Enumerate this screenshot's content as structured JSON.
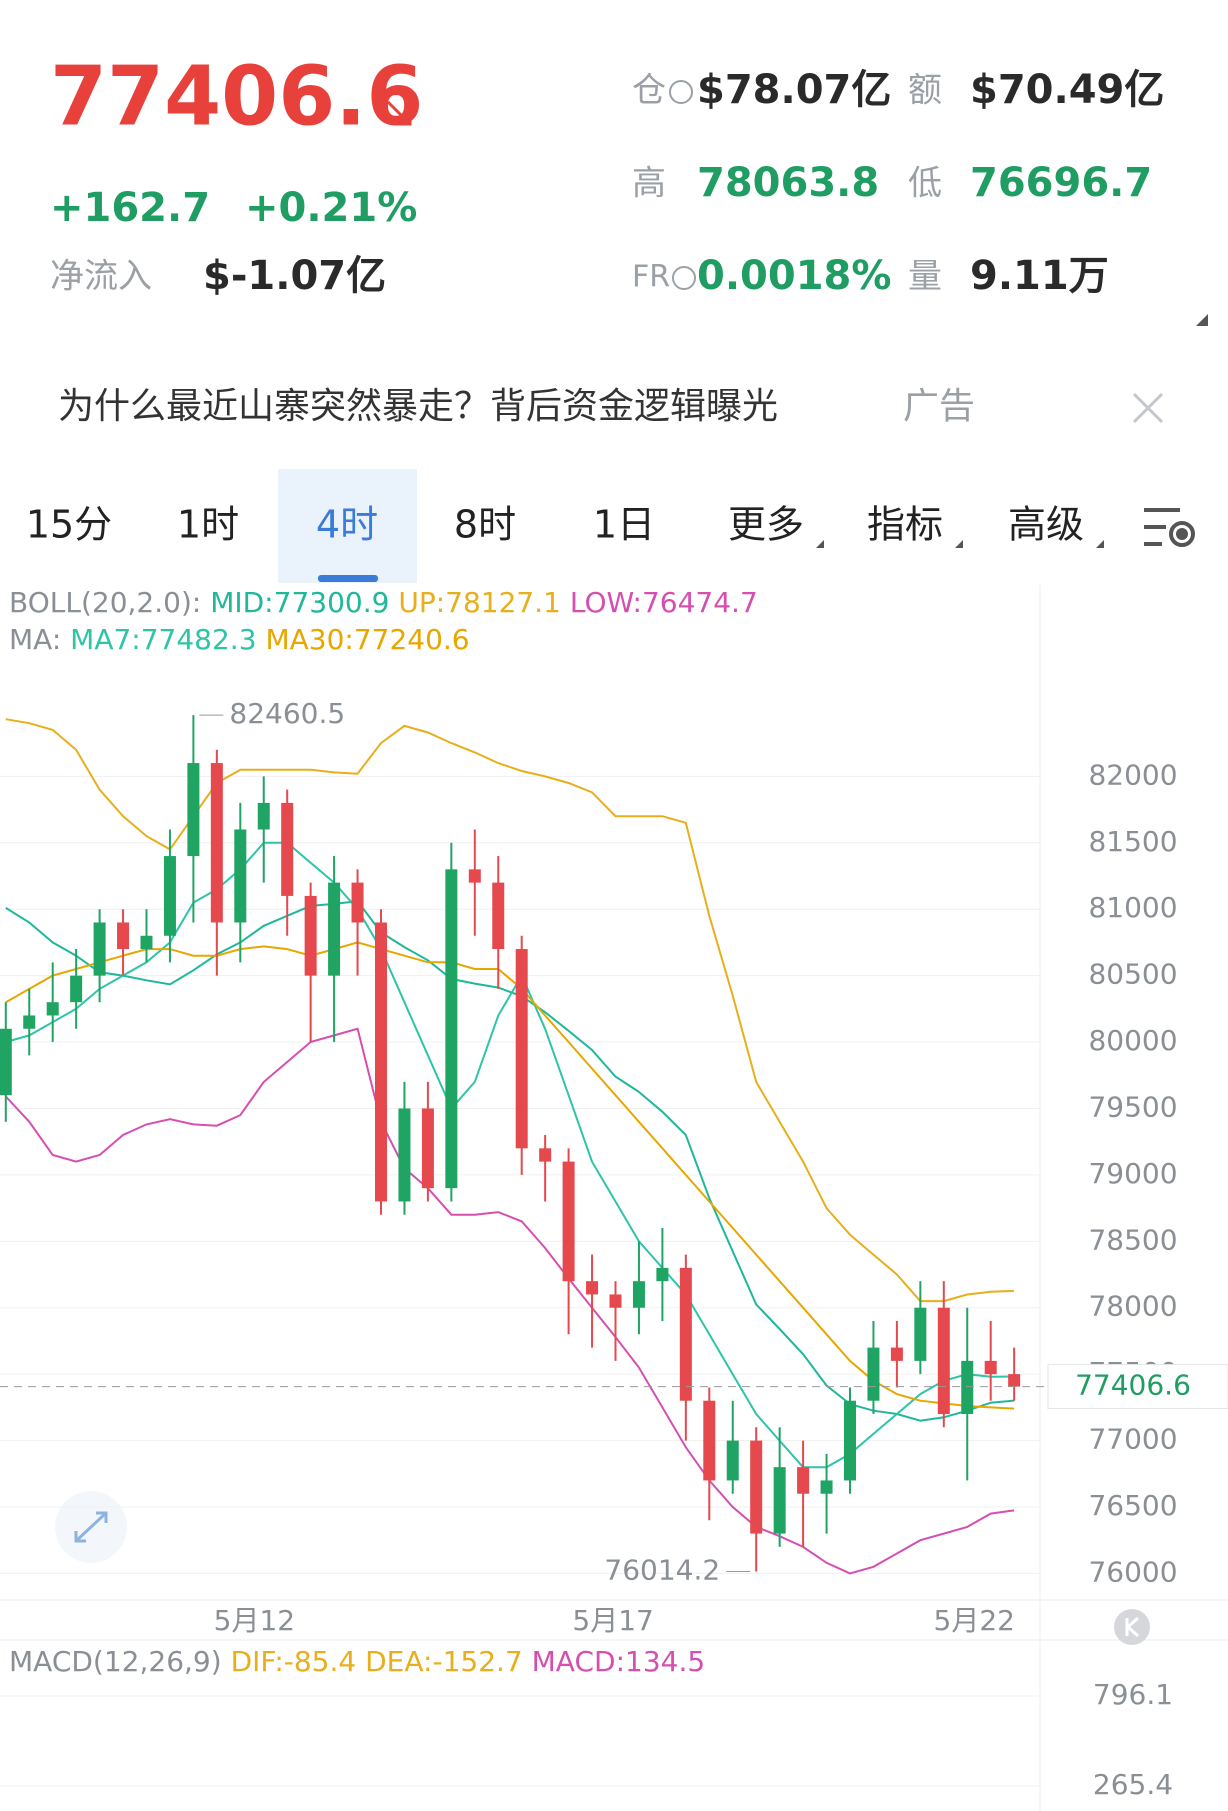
{
  "header": {
    "price": "77406.6",
    "change": "+162.7",
    "change_pct": "+0.21%",
    "net_inflow_label": "净流入",
    "net_inflow": "$-1.07亿",
    "open_interest_label": "仓",
    "open_interest": "$78.07亿",
    "turnover_label": "额",
    "turnover": "$70.49亿",
    "high_label": "高",
    "high": "78063.8",
    "low_label": "低",
    "low": "76696.7",
    "funding_label": "FR",
    "funding_rate": "0.0018%",
    "volume_label": "量",
    "volume": "9.11万"
  },
  "ad": {
    "text": "为什么最近山寨突然暴走？背后资金逻辑曝光",
    "tag": "广告"
  },
  "tabs": [
    "15分",
    "1时",
    "4时",
    "8时",
    "1日",
    "更多",
    "指标",
    "高级"
  ],
  "active_tab": 2,
  "chart_data": {
    "type": "candlestick",
    "legend_boll": "BOLL(20,2.0):",
    "legend_ma": "MA:",
    "open": [
      79600,
      80100,
      80200,
      80300,
      80500,
      80900,
      80700,
      80800,
      81400,
      82100,
      80900,
      81600,
      81800,
      81100,
      80500,
      81200,
      80900,
      78800,
      79500,
      78900,
      81300,
      81200,
      80700,
      79200,
      79100,
      78200,
      78100,
      78000,
      78200,
      78300,
      77300,
      76700,
      77000,
      76300,
      76800,
      76600,
      76700,
      77300,
      77700,
      77600,
      78000,
      77200,
      77600,
      77500
    ],
    "high": [
      80300,
      80400,
      80600,
      80700,
      81000,
      81000,
      81000,
      81600,
      82460.5,
      82200,
      81800,
      82000,
      81900,
      81200,
      81400,
      81300,
      81000,
      79700,
      79700,
      81500,
      81600,
      81400,
      80800,
      79300,
      79200,
      78400,
      78200,
      78500,
      78600,
      78400,
      77400,
      77300,
      77100,
      77100,
      77000,
      76900,
      77400,
      77900,
      77900,
      78200,
      78200,
      78000,
      77900,
      77700
    ],
    "low": [
      79400,
      79900,
      80000,
      80100,
      80300,
      80500,
      80600,
      80600,
      80900,
      80500,
      80600,
      81200,
      80800,
      80000,
      80000,
      80500,
      78700,
      78700,
      78800,
      78800,
      80800,
      80400,
      79000,
      78800,
      77800,
      77700,
      77600,
      77800,
      77900,
      77000,
      76400,
      76600,
      76014.2,
      76200,
      76200,
      76300,
      76600,
      77200,
      77400,
      77500,
      77100,
      76700,
      77300,
      77300
    ],
    "close": [
      80100,
      80200,
      80300,
      80500,
      80900,
      80700,
      80800,
      81400,
      82100,
      80900,
      81600,
      81800,
      81100,
      80500,
      81200,
      80900,
      78800,
      79500,
      78900,
      81300,
      81200,
      80700,
      79200,
      79100,
      78200,
      78100,
      78000,
      78200,
      78300,
      77300,
      76700,
      77000,
      76300,
      76800,
      76600,
      76700,
      77300,
      77700,
      77600,
      78000,
      77200,
      77600,
      77500,
      77406.6
    ],
    "up_color": "#20a464",
    "down_color": "#e5484d",
    "series": [
      {
        "name": "MID:",
        "color": "#1fb89a",
        "legend_row": 0,
        "values": [
          81010,
          80900,
          80750,
          80650,
          80525,
          80500,
          80465,
          80435,
          80540,
          80660,
          80750,
          80875,
          80950,
          81025,
          81040,
          81060,
          80825,
          80715,
          80615,
          80475,
          80440,
          80410,
          80345,
          80225,
          80085,
          79940,
          79740,
          79625,
          79475,
          79300,
          78825,
          78425,
          78025,
          77840,
          77650,
          77415,
          77275,
          77225,
          77200,
          77150,
          77175,
          77225,
          77285,
          77300.9
        ]
      },
      {
        "name": "UP:",
        "color": "#e8ae1c",
        "legend_row": 0,
        "values": [
          82430,
          82400,
          82350,
          82200,
          81900,
          81700,
          81550,
          81450,
          81700,
          81950,
          82050,
          82050,
          82050,
          82050,
          82030,
          82020,
          82250,
          82380,
          82330,
          82250,
          82180,
          82100,
          82040,
          82000,
          81950,
          81880,
          81700,
          81700,
          81700,
          81650,
          80950,
          80350,
          79700,
          79400,
          79100,
          78750,
          78550,
          78400,
          78250,
          78050,
          78050,
          78100,
          78120,
          78127.1
        ]
      },
      {
        "name": "LOW:",
        "color": "#d64fb0",
        "legend_row": 0,
        "values": [
          79590,
          79400,
          79150,
          79100,
          79150,
          79300,
          79380,
          79420,
          79380,
          79370,
          79450,
          79700,
          79850,
          80000,
          80050,
          80100,
          79400,
          79050,
          78900,
          78700,
          78700,
          78720,
          78650,
          78450,
          78220,
          78000,
          77780,
          77550,
          77250,
          76950,
          76700,
          76500,
          76350,
          76280,
          76200,
          76080,
          76000,
          76050,
          76150,
          76250,
          76300,
          76350,
          76450,
          76474.7
        ]
      },
      {
        "name": "MA7:",
        "color": "#2ec4a8",
        "legend_row": 1,
        "values": [
          80000,
          80050,
          80150,
          80250,
          80400,
          80500,
          80600,
          80750,
          81050,
          81150,
          81300,
          81500,
          81500,
          81350,
          81200,
          81000,
          80700,
          80300,
          79900,
          79500,
          79700,
          80200,
          80500,
          80100,
          79600,
          79100,
          78800,
          78500,
          78300,
          78100,
          77800,
          77500,
          77200,
          77000,
          76800,
          76800,
          76900,
          77050,
          77200,
          77350,
          77450,
          77500,
          77480,
          77482.3
        ]
      },
      {
        "name": "MA30:",
        "color": "#e8a600",
        "legend_row": 1,
        "values": [
          80300,
          80400,
          80500,
          80550,
          80600,
          80650,
          80700,
          80700,
          80650,
          80650,
          80700,
          80720,
          80700,
          80650,
          80700,
          80750,
          80700,
          80650,
          80600,
          80600,
          80550,
          80550,
          80400,
          80200,
          80000,
          79800,
          79600,
          79400,
          79200,
          79000,
          78800,
          78600,
          78400,
          78200,
          78000,
          77800,
          77600,
          77450,
          77350,
          77300,
          77280,
          77260,
          77250,
          77240.6
        ]
      }
    ],
    "high_marker": 82460.5,
    "low_marker": 76014.2,
    "last_price": 77406.6,
    "ylim": [
      75800,
      82650
    ],
    "yticks": [
      76000,
      76500,
      77000,
      77500,
      78000,
      78500,
      79000,
      79500,
      80000,
      80500,
      81000,
      81500,
      82000
    ],
    "xticks": [
      {
        "value": 10.6,
        "label": "5月12"
      },
      {
        "value": 25.9,
        "label": "5月17"
      },
      {
        "value": 41.3,
        "label": "5月22"
      }
    ],
    "grid": true
  },
  "macd_panel": {
    "title": "MACD(12,26,9)",
    "dif_label": "DIF:",
    "dif": -85.4,
    "dea_label": "DEA:",
    "dea": -152.7,
    "macd_label": "MACD:",
    "macd": 134.5,
    "ylim": [
      118,
      1126
    ],
    "yticks": [
      796.1,
      265.4
    ]
  }
}
